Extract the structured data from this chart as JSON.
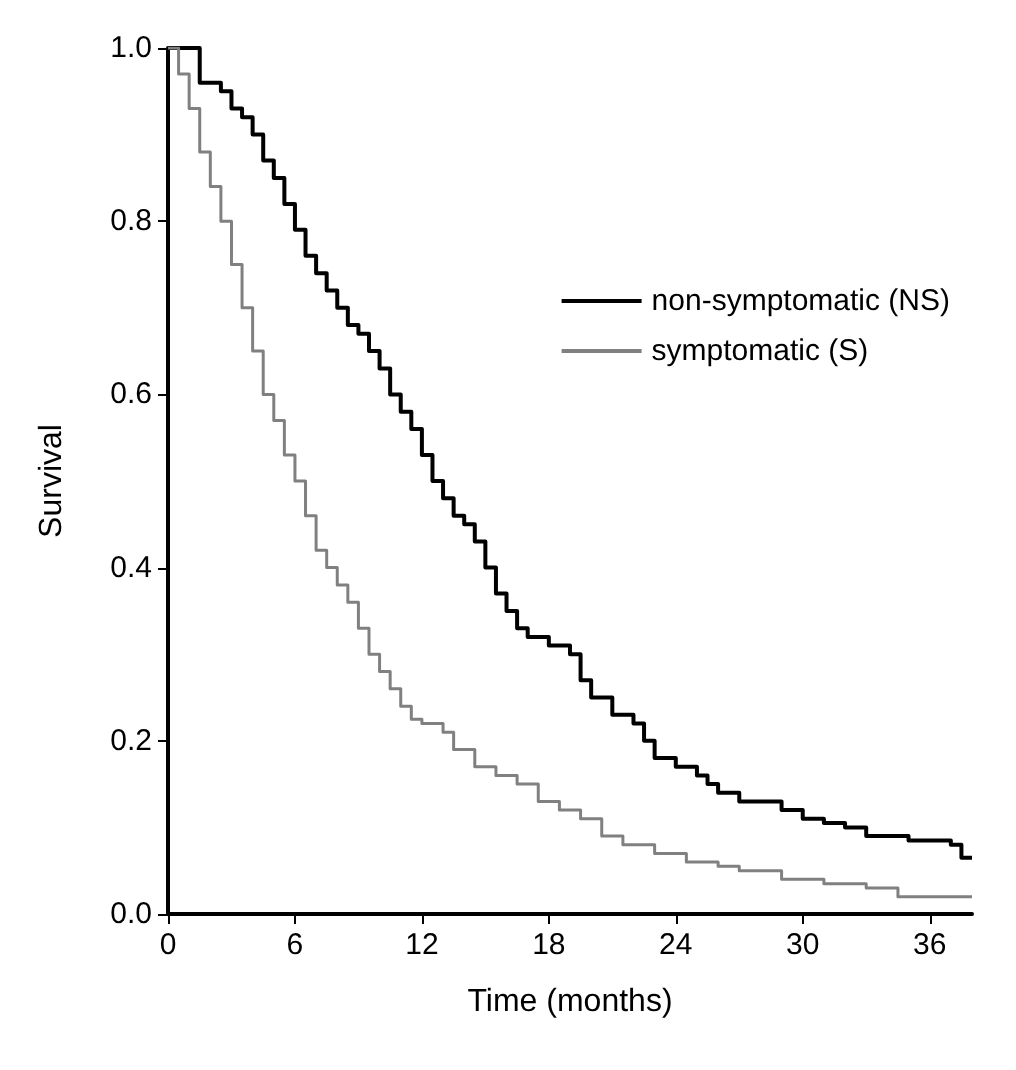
{
  "chart_data": {
    "type": "step",
    "xlabel": "Time (months)",
    "ylabel": "Survival",
    "xlim": [
      0,
      38
    ],
    "xticks": [
      0,
      6,
      12,
      18,
      24,
      30,
      36
    ],
    "ylim": [
      0,
      1
    ],
    "yticks": [
      {
        "value": 0,
        "label": "0.0"
      },
      {
        "value": 0.2,
        "label": "0.2"
      },
      {
        "value": 0.4,
        "label": "0.4"
      },
      {
        "value": 0.6,
        "label": "0.6"
      },
      {
        "value": 0.8,
        "label": "0.8"
      },
      {
        "value": 1,
        "label": "1.0"
      }
    ],
    "grid": false,
    "legend": "top right",
    "marker": "none",
    "line_style": "solid",
    "series": [
      {
        "name": "non-symptomatic (NS)",
        "color": "#000000",
        "x": [
          0,
          1.2,
          1.5,
          2.5,
          3,
          3.5,
          4,
          4.5,
          5,
          5.5,
          6,
          6.5,
          7,
          7.5,
          8,
          8.5,
          9,
          9.5,
          10,
          10.5,
          11,
          11.5,
          12,
          12.5,
          13,
          13.5,
          14,
          14.5,
          15,
          15.5,
          16,
          16.5,
          17,
          18,
          19,
          19.5,
          20,
          21,
          22,
          22.5,
          23,
          24,
          25,
          25.5,
          26,
          27,
          29,
          30,
          31,
          32,
          33,
          35,
          37,
          37.5,
          38
        ],
        "values": [
          1,
          1,
          0.96,
          0.95,
          0.93,
          0.92,
          0.9,
          0.87,
          0.85,
          0.82,
          0.79,
          0.76,
          0.74,
          0.72,
          0.7,
          0.68,
          0.67,
          0.65,
          0.63,
          0.6,
          0.58,
          0.56,
          0.53,
          0.5,
          0.48,
          0.46,
          0.45,
          0.43,
          0.4,
          0.37,
          0.35,
          0.33,
          0.32,
          0.31,
          0.3,
          0.27,
          0.25,
          0.23,
          0.22,
          0.2,
          0.18,
          0.17,
          0.16,
          0.15,
          0.14,
          0.13,
          0.12,
          0.11,
          0.105,
          0.1,
          0.09,
          0.085,
          0.08,
          0.065,
          0.065
        ]
      },
      {
        "name": "symptomatic (S)",
        "color": "#808080",
        "x": [
          0,
          0.5,
          1,
          1.5,
          2,
          2.5,
          3,
          3.5,
          4,
          4.5,
          5,
          5.5,
          6,
          6.5,
          7,
          7.5,
          8,
          8.5,
          9,
          9.5,
          10,
          10.5,
          11,
          11.5,
          12,
          13,
          13.5,
          14.5,
          15.5,
          16.5,
          17.5,
          18.5,
          19.5,
          20.5,
          21.5,
          23,
          24.5,
          26,
          27,
          29,
          31,
          33,
          34.5,
          38
        ],
        "values": [
          1,
          0.97,
          0.93,
          0.88,
          0.84,
          0.8,
          0.75,
          0.7,
          0.65,
          0.6,
          0.57,
          0.53,
          0.5,
          0.46,
          0.42,
          0.4,
          0.38,
          0.36,
          0.33,
          0.3,
          0.28,
          0.26,
          0.24,
          0.225,
          0.22,
          0.21,
          0.19,
          0.17,
          0.16,
          0.15,
          0.13,
          0.12,
          0.11,
          0.09,
          0.08,
          0.07,
          0.06,
          0.055,
          0.05,
          0.04,
          0.035,
          0.03,
          0.02,
          0.02
        ]
      }
    ]
  }
}
